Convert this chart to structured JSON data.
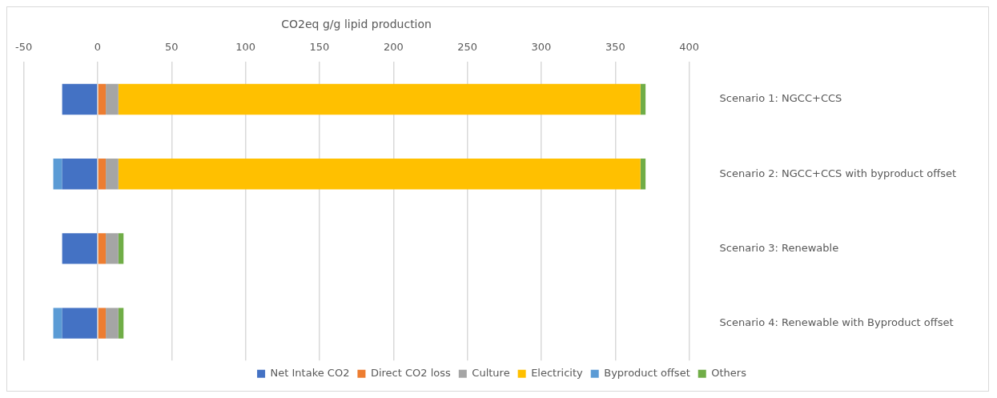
{
  "chart_data": {
    "type": "bar",
    "orientation": "horizontal",
    "stacked": true,
    "xlabel": "CO2eq g/g lipid production",
    "categories": [
      "Scenario 1: NGCC+CCS",
      "Scenario 2: NGCC+CCS with byproduct offset",
      "Scenario 3: Renewable",
      "Scenario 4: Renewable with Byproduct offset"
    ],
    "series": [
      {
        "name": "Net Intake CO2",
        "color": "#4472c4",
        "values": [
          -24,
          -24,
          -24,
          -24
        ]
      },
      {
        "name": "Direct CO2 loss",
        "color": "#ed7d31",
        "values": [
          5.5,
          5.5,
          5.5,
          5.5
        ]
      },
      {
        "name": "Culture",
        "color": "#a5a5a5",
        "values": [
          8.5,
          8.5,
          8.5,
          8.5
        ]
      },
      {
        "name": "Electricity",
        "color": "#ffc000",
        "values": [
          353,
          353,
          0,
          0
        ]
      },
      {
        "name": "Byproduct offset",
        "color": "#5b9bd5",
        "values": [
          0,
          -6,
          0,
          -6
        ]
      },
      {
        "name": "Others",
        "color": "#70ad47",
        "values": [
          3.5,
          3.5,
          3.5,
          3.5
        ]
      }
    ],
    "xlim": [
      -50,
      400
    ],
    "xticks": [
      -50,
      0,
      50,
      100,
      150,
      200,
      250,
      300,
      350,
      400
    ],
    "grid": "x",
    "legend": "bottom"
  }
}
